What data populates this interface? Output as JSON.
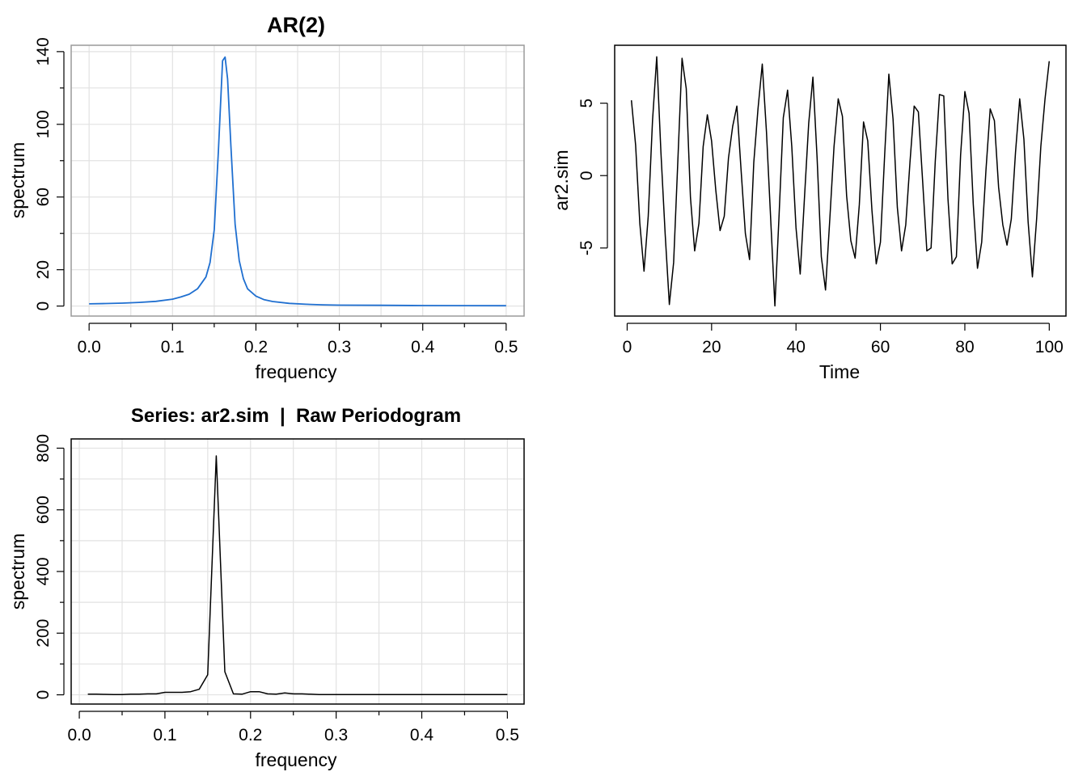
{
  "chart_data": [
    {
      "type": "line",
      "title": "AR(2)",
      "xlabel": "frequency",
      "ylabel": "spectrum",
      "xlim": [
        0,
        0.5
      ],
      "ylim": [
        0,
        140
      ],
      "grid": true,
      "xticks": [
        "0.0",
        "0.1",
        "0.2",
        "0.3",
        "0.4",
        "0.5"
      ],
      "yticks": [
        "0",
        "20",
        "60",
        "100",
        "140"
      ],
      "line_color": "#1f6fd0",
      "series": [
        {
          "x": [
            0.0,
            0.02,
            0.04,
            0.06,
            0.08,
            0.1,
            0.11,
            0.12,
            0.13,
            0.14,
            0.145,
            0.15,
            0.155,
            0.16,
            0.163,
            0.166,
            0.17,
            0.175,
            0.18,
            0.185,
            0.19,
            0.2,
            0.21,
            0.22,
            0.24,
            0.26,
            0.28,
            0.3,
            0.35,
            0.4,
            0.45,
            0.5
          ],
          "values": [
            1.2,
            1.4,
            1.6,
            2.0,
            2.6,
            3.8,
            5.0,
            6.5,
            9.5,
            16,
            24,
            42,
            85,
            135,
            137,
            125,
            88,
            45,
            25,
            15,
            9.5,
            5.5,
            3.5,
            2.5,
            1.5,
            1.0,
            0.7,
            0.5,
            0.4,
            0.3,
            0.25,
            0.2
          ]
        }
      ]
    },
    {
      "type": "line",
      "title": "",
      "xlabel": "Time",
      "ylabel": "ar2.sim",
      "xlim": [
        1,
        100
      ],
      "ylim": [
        -9,
        8.3
      ],
      "grid": false,
      "xticks": [
        "0",
        "20",
        "40",
        "60",
        "80",
        "100"
      ],
      "yticks": [
        "-5",
        "0",
        "5"
      ],
      "line_color": "#000000",
      "series": [
        {
          "x": [
            1,
            2,
            3,
            4,
            5,
            6,
            7,
            8,
            9,
            10,
            11,
            12,
            13,
            14,
            15,
            16,
            17,
            18,
            19,
            20,
            21,
            22,
            23,
            24,
            25,
            26,
            27,
            28,
            29,
            30,
            31,
            32,
            33,
            34,
            35,
            36,
            37,
            38,
            39,
            40,
            41,
            42,
            43,
            44,
            45,
            46,
            47,
            48,
            49,
            50,
            51,
            52,
            53,
            54,
            55,
            56,
            57,
            58,
            59,
            60,
            61,
            62,
            63,
            64,
            65,
            66,
            67,
            68,
            69,
            70,
            71,
            72,
            73,
            74,
            75,
            76,
            77,
            78,
            79,
            80,
            81,
            82,
            83,
            84,
            85,
            86,
            87,
            88,
            89,
            90,
            91,
            92,
            93,
            94,
            95,
            96,
            97,
            98,
            99,
            100
          ],
          "values": [
            5.2,
            2.1,
            -3.3,
            -6.6,
            -2.8,
            3.8,
            8.2,
            1.6,
            -4.0,
            -8.9,
            -6.0,
            1.0,
            8.1,
            6.0,
            -1.5,
            -5.2,
            -3.3,
            2.0,
            4.2,
            2.4,
            -1.0,
            -3.8,
            -2.8,
            1.2,
            3.4,
            4.8,
            0.3,
            -4.0,
            -5.8,
            0.9,
            4.6,
            7.7,
            3.0,
            -3.0,
            -9.0,
            -2.7,
            4.0,
            5.9,
            2.0,
            -3.6,
            -6.8,
            -1.6,
            3.6,
            6.8,
            1.2,
            -5.6,
            -7.9,
            -3.0,
            2.0,
            5.3,
            4.1,
            -1.4,
            -4.5,
            -5.7,
            -2.0,
            3.7,
            2.4,
            -2.4,
            -6.1,
            -4.6,
            1.4,
            7.0,
            3.9,
            -2.2,
            -5.2,
            -3.4,
            0.9,
            4.8,
            4.4,
            -0.4,
            -5.2,
            -5.0,
            1.0,
            5.6,
            5.5,
            -1.6,
            -6.1,
            -5.6,
            1.4,
            5.8,
            4.3,
            -2.0,
            -6.4,
            -4.6,
            0.4,
            4.6,
            3.8,
            -0.8,
            -3.4,
            -4.8,
            -3.0,
            1.6,
            5.3,
            2.5,
            -3.2,
            -7.0,
            -3.0,
            2.0,
            5.3,
            7.9
          ]
        }
      ]
    },
    {
      "type": "line",
      "title": "Series: ar2.sim  |  Raw Periodogram",
      "xlabel": "frequency",
      "ylabel": "spectrum",
      "xlim": [
        0.01,
        0.5
      ],
      "ylim": [
        0,
        800
      ],
      "grid": true,
      "xticks": [
        "0.0",
        "0.1",
        "0.2",
        "0.3",
        "0.4",
        "0.5"
      ],
      "yticks": [
        "0",
        "200",
        "400",
        "600",
        "800"
      ],
      "line_color": "#000000",
      "series": [
        {
          "x": [
            0.01,
            0.02,
            0.03,
            0.04,
            0.05,
            0.06,
            0.07,
            0.08,
            0.09,
            0.1,
            0.11,
            0.12,
            0.13,
            0.14,
            0.15,
            0.16,
            0.17,
            0.18,
            0.19,
            0.2,
            0.21,
            0.22,
            0.23,
            0.24,
            0.25,
            0.26,
            0.27,
            0.28,
            0.29,
            0.3,
            0.31,
            0.32,
            0.33,
            0.34,
            0.35,
            0.36,
            0.37,
            0.38,
            0.39,
            0.4,
            0.41,
            0.42,
            0.43,
            0.44,
            0.45,
            0.46,
            0.47,
            0.48,
            0.49,
            0.5
          ],
          "values": [
            2,
            2,
            1.5,
            1,
            1,
            2,
            2,
            3,
            3,
            8,
            8,
            8,
            10,
            18,
            65,
            775,
            75,
            3,
            2,
            10,
            10,
            3,
            2,
            6,
            3,
            3,
            2,
            1,
            1,
            1,
            1,
            1,
            1,
            1,
            1,
            1,
            1,
            1,
            1,
            1,
            1,
            1,
            1,
            1,
            1,
            1,
            1,
            1,
            1,
            1
          ]
        }
      ]
    }
  ]
}
